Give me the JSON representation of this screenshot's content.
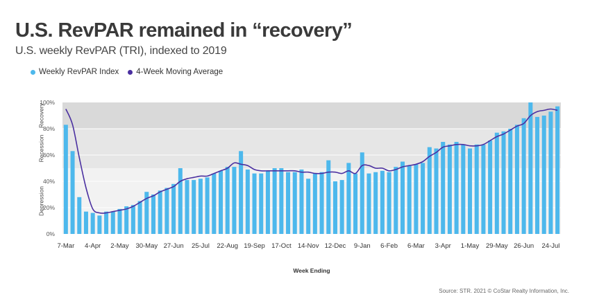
{
  "header": {
    "title": "U.S. RevPAR remained in “recovery”",
    "subtitle": "U.S. weekly RevPAR (TRI), indexed to 2019"
  },
  "source": "Source: STR. 2021 © CoStar Realty Information, Inc.",
  "colors": {
    "bars": "#4db8ec",
    "line": "#4a2fa0",
    "band_recovery": "#d9d9d9",
    "band_recession": "#e6e6e6",
    "band_depression": "#f2f2f2",
    "gridline": "#ffffff"
  },
  "chart_data": {
    "type": "bar",
    "title": "U.S. RevPAR remained in “recovery”",
    "subtitle": "U.S. weekly RevPAR (TRI), indexed to 2019",
    "xlabel": "Week Ending",
    "ylabel": "",
    "ylim": [
      0,
      100
    ],
    "yticks": [
      "0%",
      "20%",
      "40%",
      "60%",
      "80%",
      "100%"
    ],
    "bands": [
      {
        "label": "Depression",
        "from": 0,
        "to": 50
      },
      {
        "label": "Recession",
        "from": 50,
        "to": 80
      },
      {
        "label": "Recovery",
        "from": 80,
        "to": 100
      }
    ],
    "xtick_labels": [
      {
        "index": 0,
        "label": "7-Mar"
      },
      {
        "index": 4,
        "label": "4-Apr"
      },
      {
        "index": 8,
        "label": "2-May"
      },
      {
        "index": 12,
        "label": "30-May"
      },
      {
        "index": 16,
        "label": "27-Jun"
      },
      {
        "index": 20,
        "label": "25-Jul"
      },
      {
        "index": 24,
        "label": "22-Aug"
      },
      {
        "index": 28,
        "label": "19-Sep"
      },
      {
        "index": 32,
        "label": "17-Oct"
      },
      {
        "index": 36,
        "label": "14-Nov"
      },
      {
        "index": 40,
        "label": "12-Dec"
      },
      {
        "index": 44,
        "label": "9-Jan"
      },
      {
        "index": 48,
        "label": "6-Feb"
      },
      {
        "index": 52,
        "label": "6-Mar"
      },
      {
        "index": 56,
        "label": "3-Apr"
      },
      {
        "index": 60,
        "label": "1-May"
      },
      {
        "index": 64,
        "label": "29-May"
      },
      {
        "index": 68,
        "label": "26-Jun"
      },
      {
        "index": 72,
        "label": "24-Jul"
      }
    ],
    "series": [
      {
        "name": "Weekly RevPAR Index",
        "type": "bar",
        "values": [
          83,
          63,
          28,
          17,
          16,
          14,
          17,
          17,
          19,
          21,
          22,
          25,
          32,
          30,
          33,
          35,
          38,
          50,
          41,
          41,
          42,
          43,
          46,
          48,
          51,
          51,
          63,
          49,
          46,
          46,
          48,
          50,
          50,
          47,
          47,
          49,
          42,
          46,
          47,
          56,
          40,
          41,
          54,
          46,
          62,
          46,
          47,
          48,
          47,
          51,
          55,
          52,
          53,
          54,
          66,
          65,
          70,
          68,
          70,
          68,
          65,
          68,
          68,
          71,
          77,
          78,
          80,
          83,
          88,
          100,
          89,
          90,
          93,
          97
        ]
      },
      {
        "name": "4-Week Moving Average",
        "type": "line",
        "values": [
          95,
          83,
          58,
          35,
          19,
          16,
          16,
          17,
          18,
          19,
          21,
          24,
          27,
          29,
          32,
          34,
          36,
          40,
          42,
          43,
          44,
          44,
          46,
          48,
          50,
          54,
          53,
          52,
          49,
          48,
          48,
          48,
          48,
          48,
          48,
          47,
          47,
          46,
          46,
          47,
          47,
          46,
          48,
          46,
          52,
          52,
          50,
          50,
          48,
          49,
          51,
          52,
          53,
          55,
          59,
          62,
          66,
          67,
          68,
          68,
          67,
          67,
          68,
          71,
          74,
          76,
          79,
          82,
          84,
          90,
          93,
          94,
          95,
          94
        ]
      }
    ]
  }
}
